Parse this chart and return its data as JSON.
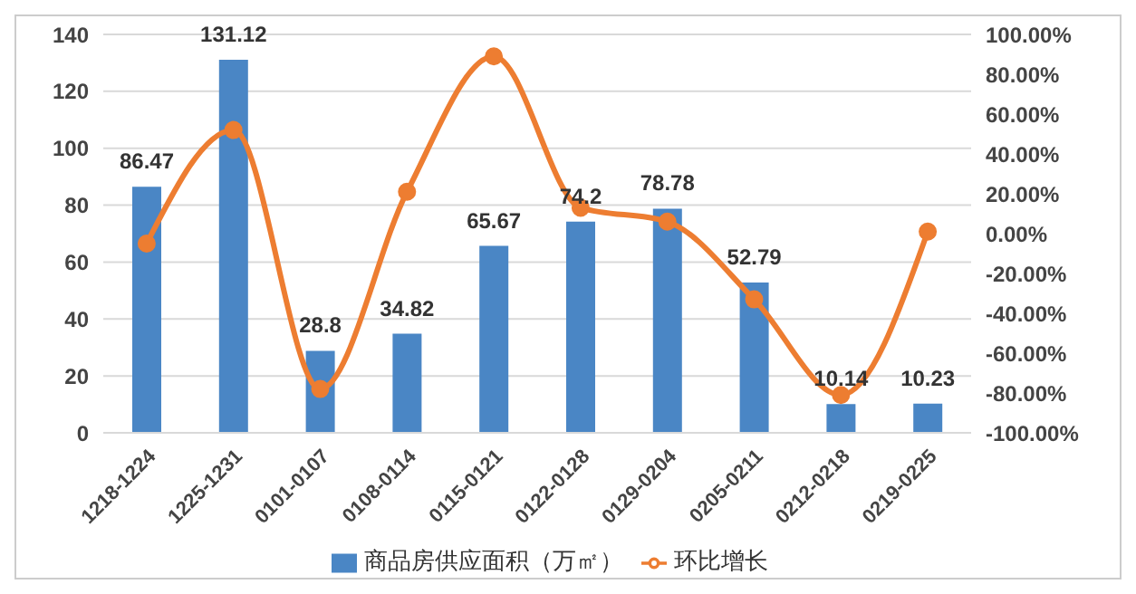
{
  "chart_data": {
    "type": "bar",
    "categories": [
      "1218-1224",
      "1225-1231",
      "0101-0107",
      "0108-0114",
      "0115-0121",
      "0122-0128",
      "0129-0204",
      "0205-0211",
      "0212-0218",
      "0219-0225"
    ],
    "series": [
      {
        "name": "商品房供应面积（万㎡）",
        "color": "#4a86c5",
        "values": [
          86.47,
          131.12,
          28.8,
          34.82,
          65.67,
          74.2,
          78.78,
          52.79,
          10.14,
          10.23
        ],
        "value_labels": [
          "86.47",
          "131.12",
          "28.8",
          "34.82",
          "65.67",
          "74.2",
          "78.78",
          "52.79",
          "10.14",
          "10.23"
        ]
      },
      {
        "name": "环比增长",
        "type": "line",
        "axis": "y2",
        "color": "#ed7d31",
        "values": [
          -5,
          52,
          -78,
          21,
          89,
          13,
          6,
          -33,
          -81,
          1
        ]
      }
    ],
    "ylim": [
      0,
      140
    ],
    "yticks": [
      0,
      20,
      40,
      60,
      80,
      100,
      120,
      140
    ],
    "y2lim": [
      -100,
      100
    ],
    "y2ticks": [
      {
        "value": -100,
        "label": "-100.00%"
      },
      {
        "value": -80,
        "label": "-80.00%"
      },
      {
        "value": -60,
        "label": "-60.00%"
      },
      {
        "value": -40,
        "label": "-40.00%"
      },
      {
        "value": -20,
        "label": "-20.00%"
      },
      {
        "value": 0,
        "label": "0.00%"
      },
      {
        "value": 20,
        "label": "20.00%"
      },
      {
        "value": 40,
        "label": "40.00%"
      },
      {
        "value": 60,
        "label": "60.00%"
      },
      {
        "value": 80,
        "label": "80.00%"
      },
      {
        "value": 100,
        "label": "100.00%"
      }
    ],
    "grid": "y",
    "legend": "bottom",
    "marker": "circle",
    "line_style": "solid"
  }
}
